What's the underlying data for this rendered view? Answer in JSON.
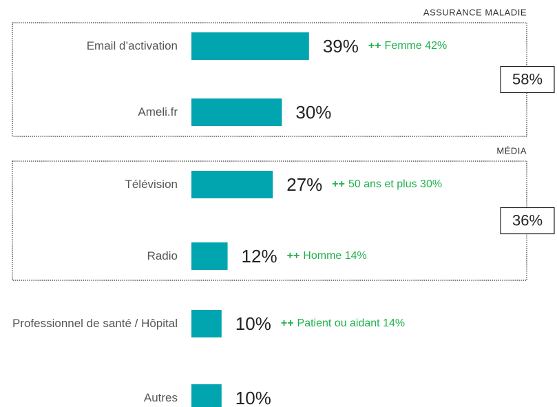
{
  "chart_data": {
    "type": "bar",
    "orientation": "horizontal",
    "categories": [
      "Email d’activation",
      "Ameli.fr",
      "Télévision",
      "Radio",
      "Professionnel de santé / Hôpital",
      "Autres"
    ],
    "values": [
      39,
      30,
      27,
      12,
      10,
      10
    ],
    "value_labels": [
      "39%",
      "30%",
      "27%",
      "12%",
      "10%",
      "10%"
    ],
    "color": "#00a5b0",
    "xlim": [
      0,
      100
    ],
    "annotation_prefix": "++",
    "annotation_color": "#21b14b",
    "annotations": [
      "Femme 42%",
      null,
      "50 ans et plus 30%",
      "Homme 14%",
      "Patient ou aidant 14%",
      null
    ],
    "groups": [
      {
        "name": "ASSURANCE MALADIE",
        "value": 58,
        "value_label": "58%",
        "members": [
          0,
          1
        ]
      },
      {
        "name": "MÉDIA",
        "value": 36,
        "value_label": "36%",
        "members": [
          2,
          3
        ]
      }
    ]
  }
}
